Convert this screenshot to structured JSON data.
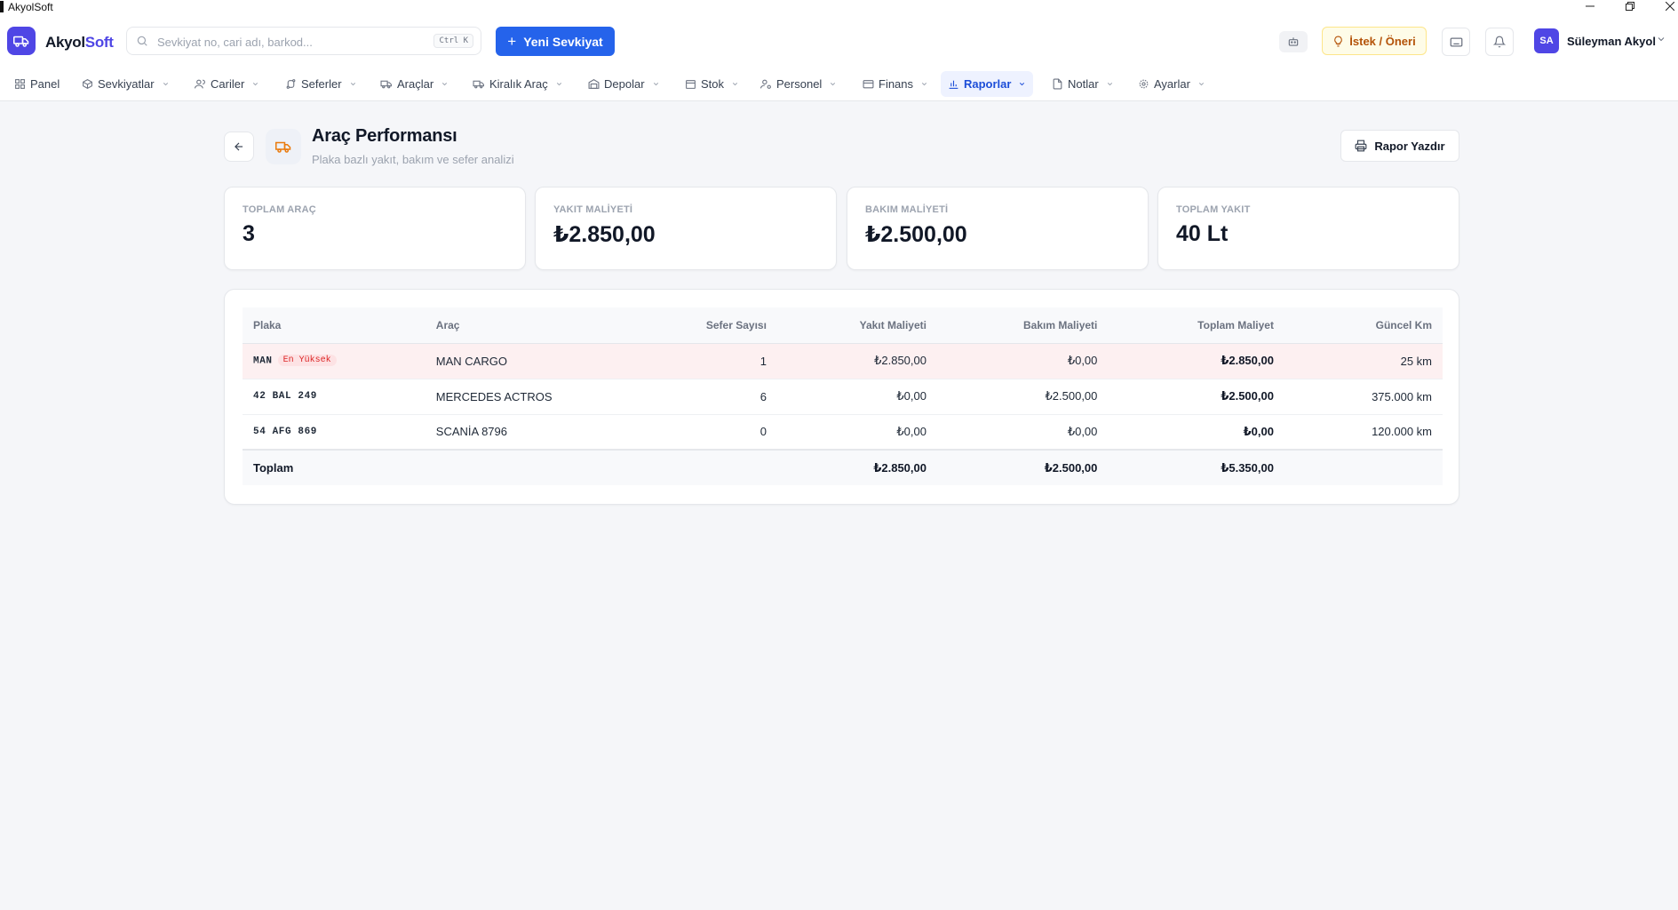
{
  "window": {
    "title": "AkyolSoft"
  },
  "header": {
    "logo_text": "Akyol",
    "logo_accent": "Soft",
    "search_placeholder": "Sevkiyat no, cari adı, barkod...",
    "search_shortcut": "Ctrl K",
    "new_button": "Yeni Sevkiyat",
    "suggest_button": "İstek / Öneri",
    "user_initials": "SA",
    "user_name": "Süleyman Akyol"
  },
  "nav": {
    "items": [
      {
        "label": "Panel",
        "icon": "grid-icon"
      },
      {
        "label": "Sevkiyatlar",
        "icon": "package-icon"
      },
      {
        "label": "Cariler",
        "icon": "users-icon"
      },
      {
        "label": "Seferler",
        "icon": "route-icon"
      },
      {
        "label": "Araçlar",
        "icon": "truck-icon"
      },
      {
        "label": "Kiralık Araç",
        "icon": "truck-icon"
      },
      {
        "label": "Depolar",
        "icon": "warehouse-icon"
      },
      {
        "label": "Stok",
        "icon": "box-icon"
      },
      {
        "label": "Personel",
        "icon": "user-cog-icon"
      },
      {
        "label": "Finans",
        "icon": "wallet-icon"
      },
      {
        "label": "Raporlar",
        "icon": "bar-chart-icon",
        "active": true
      },
      {
        "label": "Notlar",
        "icon": "file-icon"
      },
      {
        "label": "Ayarlar",
        "icon": "gear-icon"
      }
    ]
  },
  "page": {
    "title": "Araç Performansı",
    "subtitle": "Plaka bazlı yakıt, bakım ve sefer analizi",
    "print_button": "Rapor Yazdır"
  },
  "stats": [
    {
      "label": "TOPLAM ARAÇ",
      "value": "3"
    },
    {
      "label": "YAKIT MALİYETİ",
      "value": "₺2.850,00"
    },
    {
      "label": "BAKIM MALİYETİ",
      "value": "₺2.500,00"
    },
    {
      "label": "TOPLAM YAKIT",
      "value": "40 Lt"
    }
  ],
  "table": {
    "columns": [
      "Plaka",
      "Araç",
      "Sefer Sayısı",
      "Yakıt Maliyeti",
      "Bakım Maliyeti",
      "Toplam Maliyet",
      "Güncel Km"
    ],
    "rows": [
      {
        "plate": "MAN",
        "badge": "En Yüksek",
        "vehicle": "MAN CARGO",
        "trips": "1",
        "fuel": "₺2.850,00",
        "maintenance": "₺0,00",
        "total": "₺2.850,00",
        "km": "25 km"
      },
      {
        "plate": "42 BAL 249",
        "vehicle": "MERCEDES ACTROS",
        "trips": "6",
        "fuel": "₺0,00",
        "maintenance": "₺2.500,00",
        "total": "₺2.500,00",
        "km": "375.000 km"
      },
      {
        "plate": "54 AFG 869",
        "vehicle": "SCANİA 8796",
        "trips": "0",
        "fuel": "₺0,00",
        "maintenance": "₺0,00",
        "total": "₺0,00",
        "km": "120.000 km"
      }
    ],
    "totals": {
      "label": "Toplam",
      "fuel": "₺2.850,00",
      "maintenance": "₺2.500,00",
      "total": "₺5.350,00"
    }
  },
  "colors": {
    "brand": "#4f46e5",
    "primary": "#2563eb",
    "highlight_row": "#fdf0f1",
    "badge": "#dc2626"
  }
}
